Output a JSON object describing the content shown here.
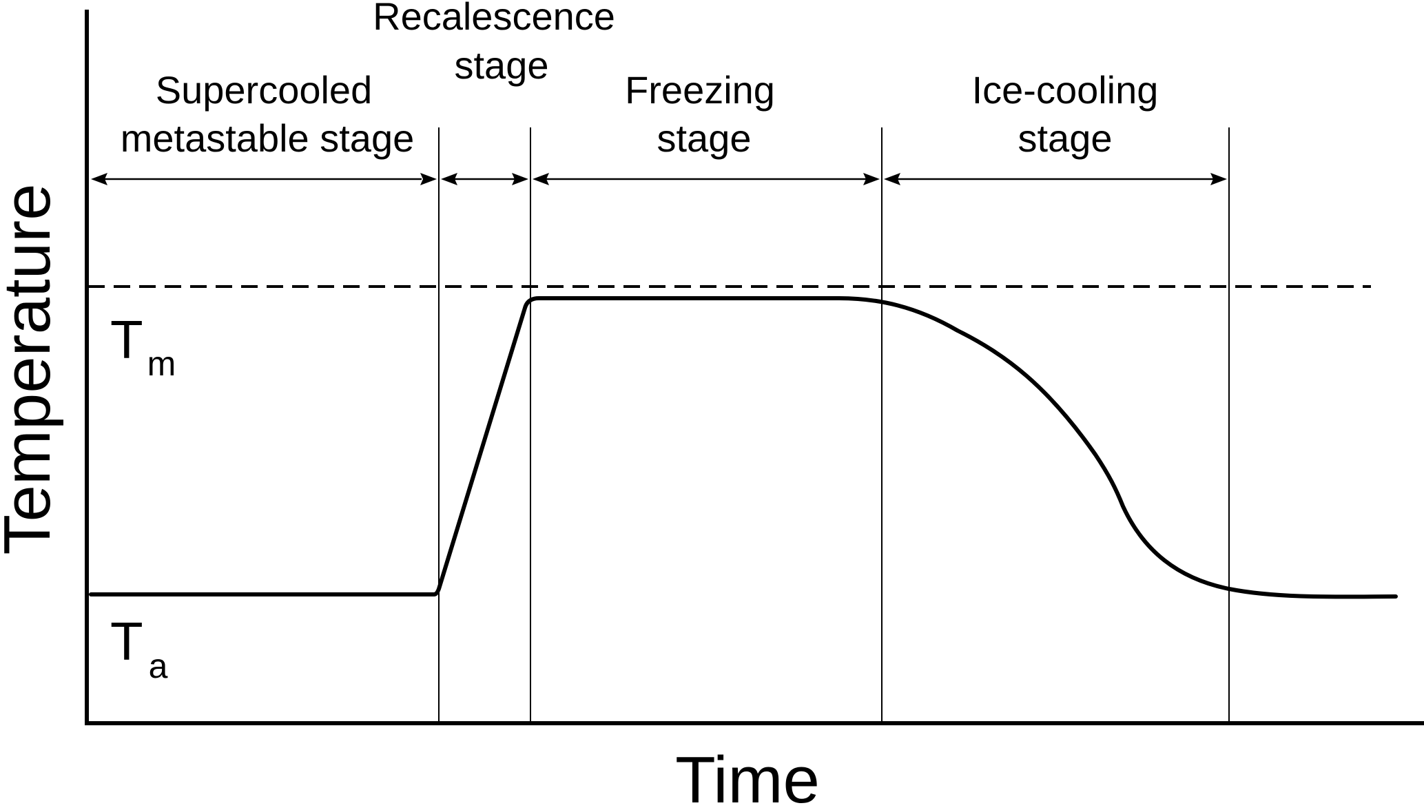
{
  "axes": {
    "x_title": "Time",
    "y_title": "Temperature"
  },
  "temperature_levels": {
    "melting": {
      "symbol": "T",
      "subscript": "m"
    },
    "ambient": {
      "symbol": "T",
      "subscript": "a"
    }
  },
  "stages": [
    {
      "id": "supercooled",
      "line1": "Supercooled",
      "line2": "metastable stage"
    },
    {
      "id": "recalescence",
      "line1": "Recalescence",
      "line2": "stage"
    },
    {
      "id": "freezing",
      "line1": "Freezing",
      "line2": "stage"
    },
    {
      "id": "ice-cooling",
      "line1": "Ice-cooling",
      "line2": "stage"
    }
  ],
  "colors": {
    "line": "#000000",
    "background": "#ffffff"
  }
}
